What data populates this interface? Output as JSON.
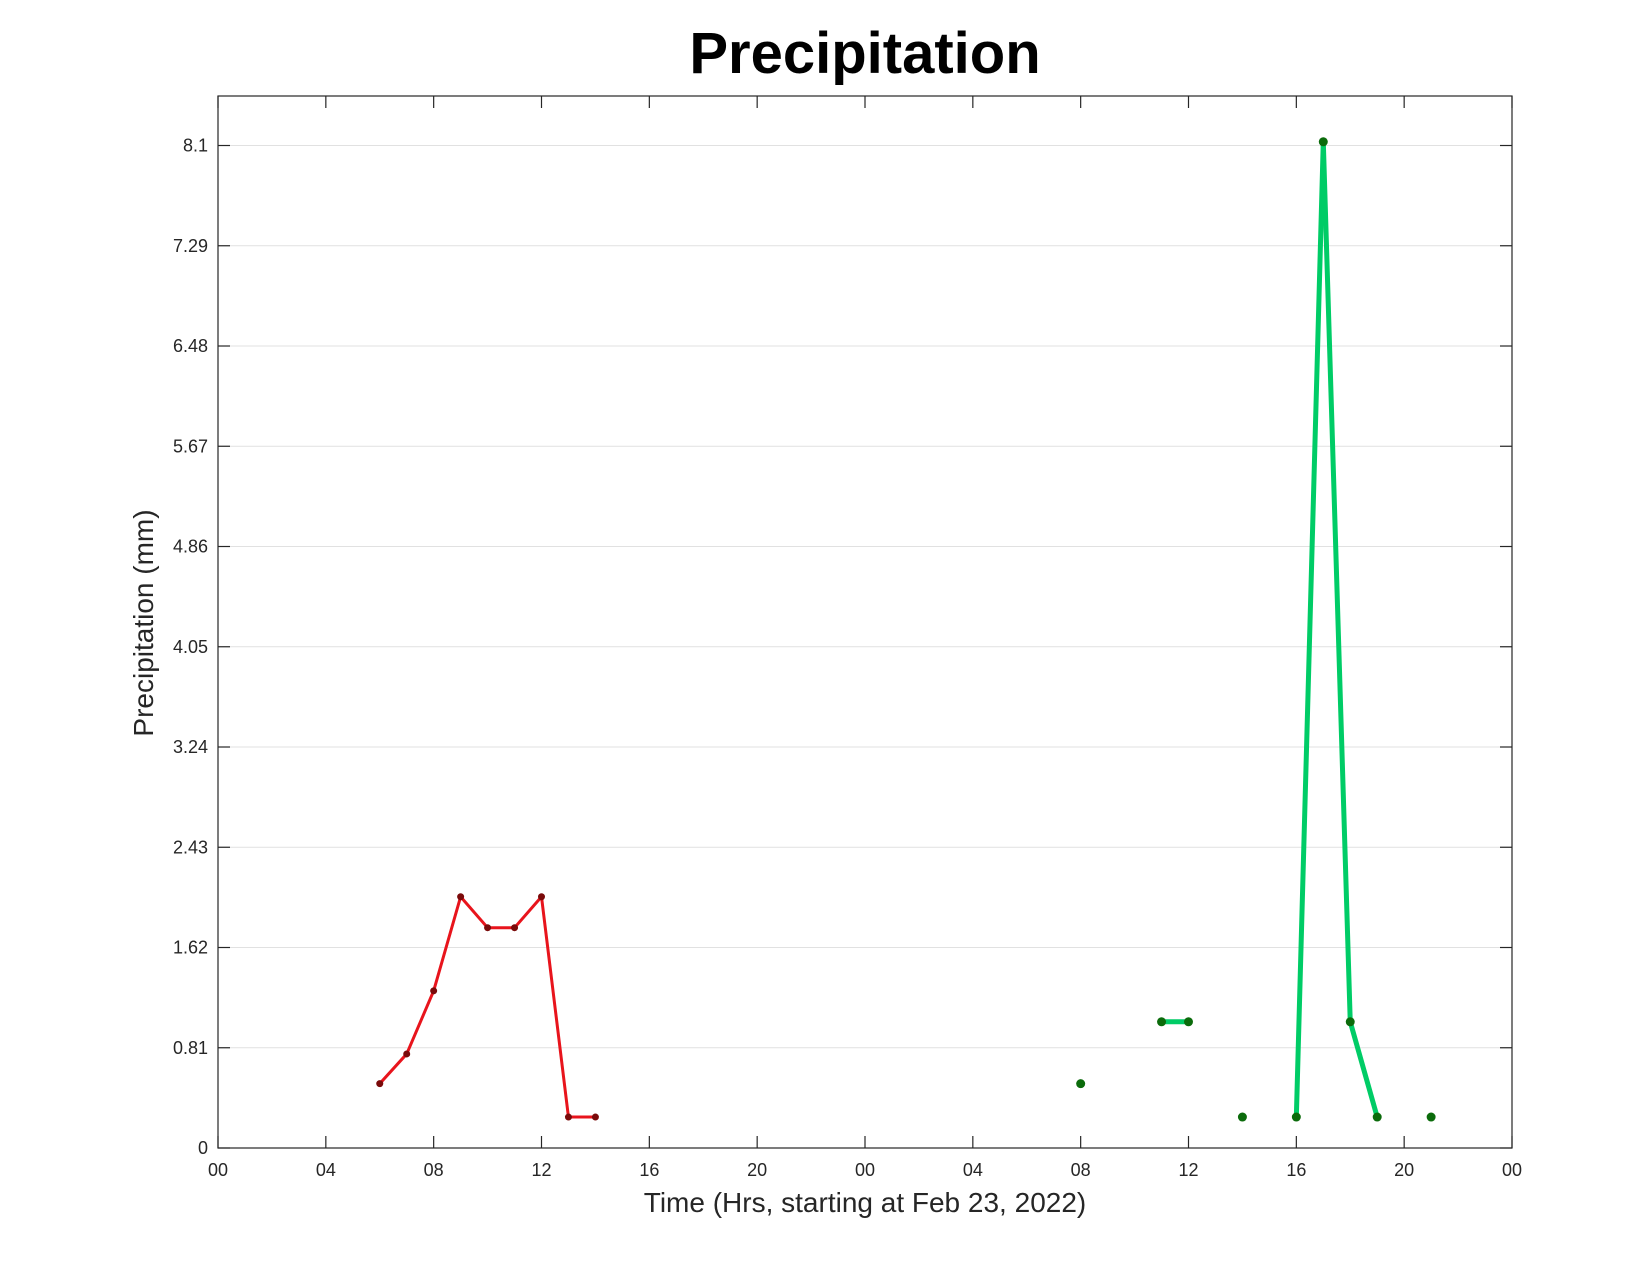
{
  "chart_data": {
    "type": "line",
    "title": "Precipitation",
    "xlabel": "Time (Hrs, starting at Feb 23, 2022)",
    "ylabel": "Precipitation (mm)",
    "x_unit": "hours",
    "xlim": [
      0,
      48
    ],
    "ylim": [
      0,
      8.5
    ],
    "x_ticks": [
      0,
      4,
      8,
      12,
      16,
      20,
      24,
      28,
      32,
      36,
      40,
      44,
      48
    ],
    "x_tick_labels": [
      "00",
      "04",
      "08",
      "12",
      "16",
      "20",
      "00",
      "04",
      "08",
      "12",
      "16",
      "20",
      "00"
    ],
    "y_ticks": [
      0,
      0.81,
      1.62,
      2.43,
      3.24,
      4.05,
      4.86,
      5.67,
      6.48,
      7.29,
      8.1
    ],
    "y_tick_labels": [
      "0",
      "0.81",
      "1.62",
      "2.43",
      "3.24",
      "4.05",
      "4.86",
      "5.67",
      "6.48",
      "7.29",
      "8.1"
    ],
    "grid": "horizontal",
    "series": [
      {
        "color": "#e8141c",
        "marker_color": "#7a0a0a",
        "line_width": 3,
        "points": [
          [
            6,
            0.52
          ],
          [
            7,
            0.76
          ],
          [
            8,
            1.27
          ],
          [
            9,
            2.03
          ],
          [
            10,
            1.78
          ],
          [
            11,
            1.78
          ],
          [
            12,
            2.03
          ],
          [
            13,
            0.25
          ],
          [
            14,
            0.25
          ]
        ]
      },
      {
        "color": "#00cc66",
        "marker_color": "#0b6b0b",
        "line_width": 5,
        "points": [
          [
            32,
            0.52
          ],
          [
            35,
            1.02
          ],
          [
            36,
            1.02
          ],
          [
            38,
            0.25
          ],
          [
            40,
            0.25
          ],
          [
            41,
            8.13
          ],
          [
            42,
            1.02
          ],
          [
            43,
            0.25
          ],
          [
            45,
            0.25
          ]
        ],
        "segments_connected": [
          [
            35,
            36
          ],
          [
            40,
            41
          ],
          [
            41,
            42
          ],
          [
            42,
            43
          ]
        ]
      }
    ]
  }
}
